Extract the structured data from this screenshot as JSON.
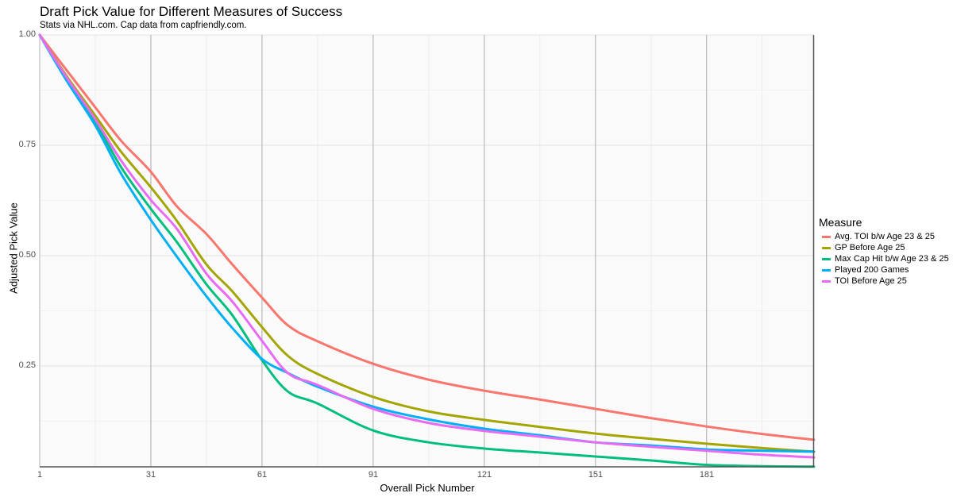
{
  "title": "Draft Pick Value for Different Measures of Success",
  "subtitle": "Stats via NHL.com. Cap data from capfriendly.com.",
  "x_axis": {
    "label": "Overall Pick Number",
    "ticks": [
      "1",
      "31",
      "61",
      "91",
      "121",
      "151",
      "181"
    ]
  },
  "y_axis": {
    "label": "Adjusted Pick Value",
    "ticks": [
      "1.00",
      "0.75",
      "0.50",
      "0.25"
    ]
  },
  "legend": {
    "title": "Measure",
    "items": [
      {
        "label": "Avg. TOI b/w Age 23 & 25",
        "color": "#F8766D"
      },
      {
        "label": "GP Before Age 25",
        "color": "#A3A500"
      },
      {
        "label": "Max Cap Hit b/w Age 23 & 25",
        "color": "#00BF7D"
      },
      {
        "label": "Played 200 Games",
        "color": "#00B0F6"
      },
      {
        "label": "TOI Before Age 25",
        "color": "#E76BF3"
      }
    ]
  },
  "chart_data": {
    "type": "line",
    "title": "Draft Pick Value for Different Measures of Success",
    "subtitle": "Stats via NHL.com. Cap data from capfriendly.com.",
    "xlabel": "Overall Pick Number",
    "ylabel": "Adjusted Pick Value",
    "xlim": [
      1,
      210
    ],
    "ylim": [
      0.022,
      1.0
    ],
    "x_ticks": [
      1,
      31,
      61,
      91,
      121,
      151,
      181
    ],
    "y_ticks": [
      0.25,
      0.5,
      0.75,
      1.0
    ],
    "grid": true,
    "legend_position": "right",
    "legend_title": "Measure",
    "x": [
      1,
      8,
      16,
      23,
      31,
      38,
      46,
      53,
      61,
      68,
      76,
      91,
      106,
      121,
      136,
      151,
      166,
      181,
      196,
      210
    ],
    "series": [
      {
        "name": "Avg. TOI b/w Age 23 & 25",
        "color": "#F8766D",
        "values": [
          1.0,
          0.923,
          0.836,
          0.76,
          0.69,
          0.612,
          0.549,
          0.48,
          0.405,
          0.342,
          0.306,
          0.255,
          0.219,
          0.194,
          0.174,
          0.153,
          0.132,
          0.113,
          0.096,
          0.083
        ]
      },
      {
        "name": "GP Before Age 25",
        "color": "#A3A500",
        "values": [
          1.0,
          0.91,
          0.817,
          0.735,
          0.655,
          0.579,
          0.48,
          0.419,
          0.338,
          0.273,
          0.232,
          0.18,
          0.147,
          0.128,
          0.112,
          0.097,
          0.085,
          0.074,
          0.064,
          0.056
        ]
      },
      {
        "name": "Max Cap Hit b/w Age 23 & 25",
        "color": "#00BF7D",
        "values": [
          1.0,
          0.905,
          0.804,
          0.7,
          0.606,
          0.531,
          0.435,
          0.365,
          0.263,
          0.192,
          0.165,
          0.104,
          0.077,
          0.063,
          0.054,
          0.045,
          0.036,
          0.026,
          0.023,
          0.022
        ]
      },
      {
        "name": "Played 200 Games",
        "color": "#00B0F6",
        "values": [
          1.0,
          0.9,
          0.795,
          0.685,
          0.581,
          0.498,
          0.408,
          0.336,
          0.266,
          0.234,
          0.203,
          0.158,
          0.129,
          0.108,
          0.093,
          0.077,
          0.07,
          0.061,
          0.058,
          0.056
        ]
      },
      {
        "name": "TOI Before Age 25",
        "color": "#E76BF3",
        "values": [
          1.0,
          0.907,
          0.809,
          0.715,
          0.626,
          0.561,
          0.459,
          0.396,
          0.307,
          0.234,
          0.207,
          0.153,
          0.121,
          0.103,
          0.09,
          0.077,
          0.067,
          0.058,
          0.049,
          0.043
        ]
      }
    ]
  }
}
